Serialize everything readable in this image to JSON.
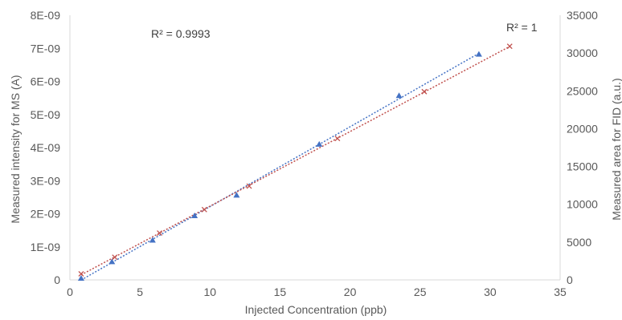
{
  "chart_data": {
    "type": "scatter",
    "xlabel": "Injected Concentration (ppb)",
    "ylabel": "Measured intensity for MS (A)",
    "y2label": "Measured area for FID (a.u.)",
    "xlim": [
      0,
      35
    ],
    "ylim": [
      0,
      8e-09
    ],
    "y2lim": [
      0,
      35000
    ],
    "x_ticks": [
      "0",
      "5",
      "10",
      "15",
      "20",
      "25",
      "30",
      "35"
    ],
    "x_tick_values": [
      0,
      5,
      10,
      15,
      20,
      25,
      30,
      35
    ],
    "y_ticks": [
      "0",
      "1E-09",
      "2E-09",
      "3E-09",
      "4E-09",
      "5E-09",
      "6E-09",
      "7E-09",
      "8E-09"
    ],
    "y_tick_values": [
      0,
      1e-09,
      2e-09,
      3e-09,
      4e-09,
      5e-09,
      6e-09,
      7e-09,
      8e-09
    ],
    "y2_ticks": [
      "0",
      "5000",
      "10000",
      "15000",
      "20000",
      "25000",
      "30000",
      "35000"
    ],
    "y2_tick_values": [
      0,
      5000,
      10000,
      15000,
      20000,
      25000,
      30000,
      35000
    ],
    "grid": false,
    "series": [
      {
        "axis": "left",
        "marker": "triangle",
        "color": "#4472C4",
        "x": [
          0.8,
          3.0,
          5.9,
          8.9,
          11.9,
          17.8,
          23.5,
          29.2
        ],
        "y": [
          5e-11,
          5.5e-10,
          1.2e-09,
          1.94e-09,
          2.56e-09,
          4.1e-09,
          5.57e-09,
          6.82e-09
        ],
        "trendline": {
          "r2_label": "R² = 0.9993",
          "color": "#4472C4"
        }
      },
      {
        "axis": "right",
        "marker": "x",
        "color": "#C0504D",
        "x": [
          0.8,
          3.2,
          6.4,
          9.6,
          12.8,
          19.1,
          25.3,
          31.4
        ],
        "y": [
          800,
          3000,
          6200,
          9300,
          12400,
          18700,
          24900,
          30900
        ],
        "trendline": {
          "r2_label": "R² = 1",
          "color": "#C0504D"
        }
      }
    ]
  }
}
